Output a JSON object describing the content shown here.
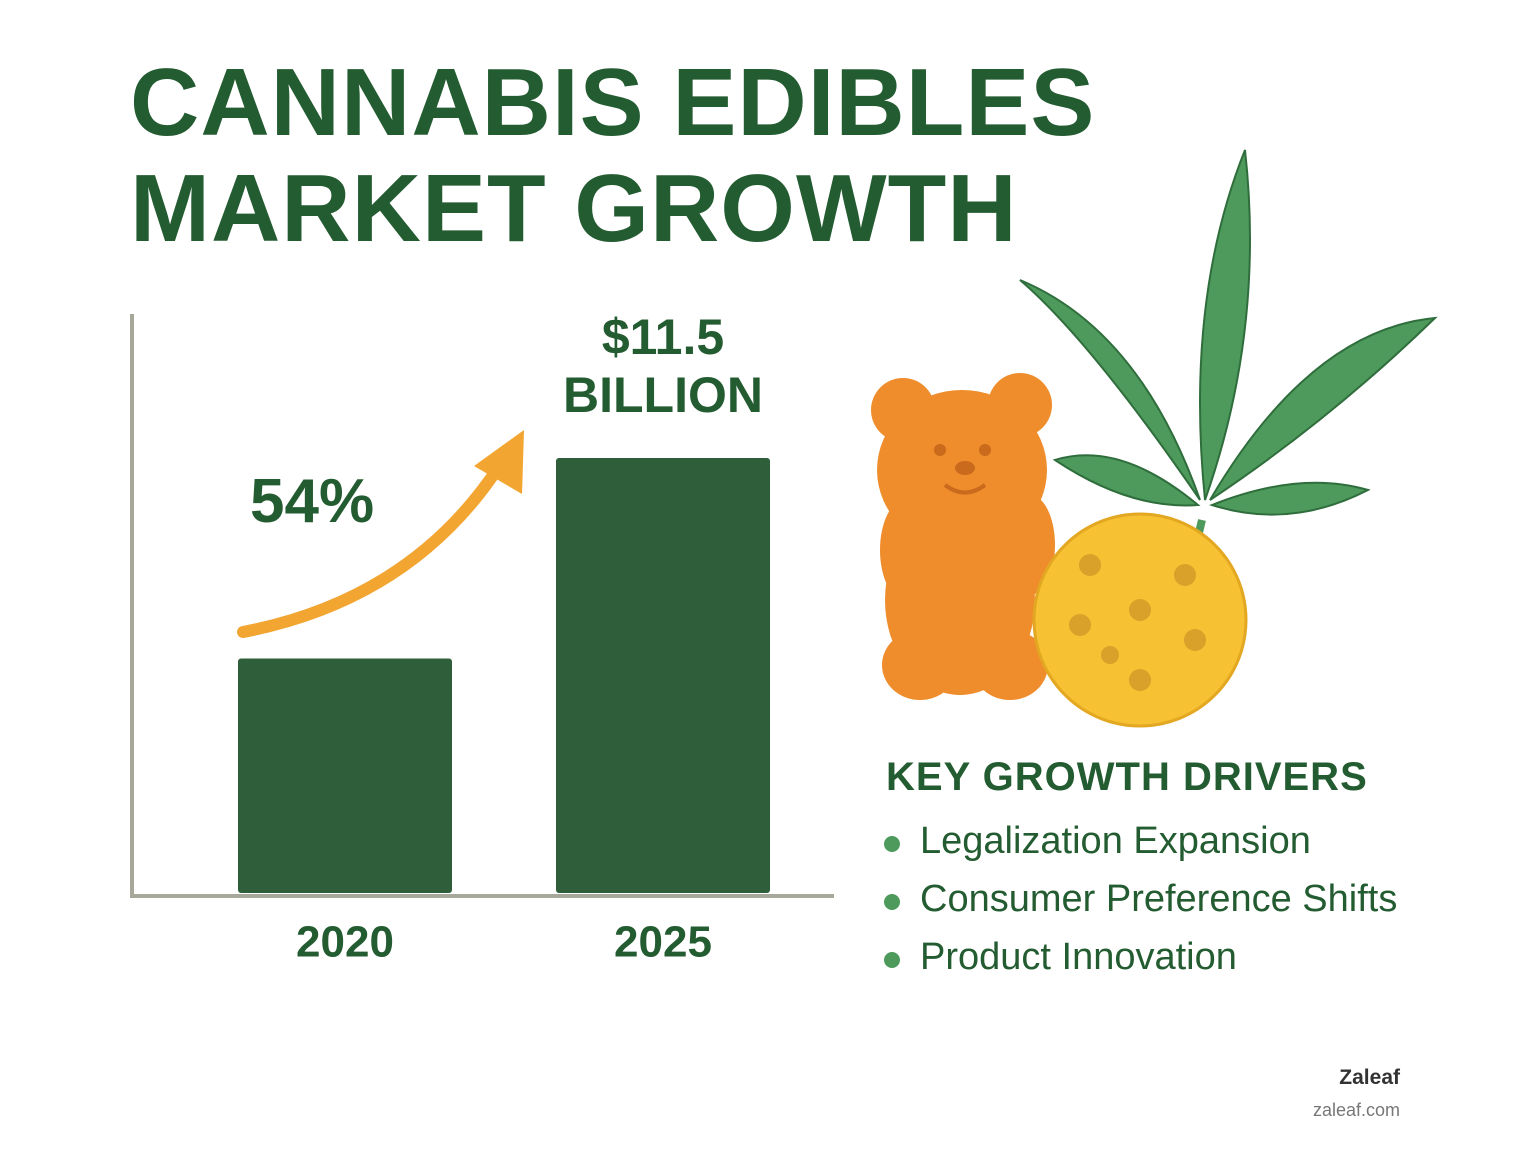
{
  "chart_data": {
    "type": "bar",
    "title": "CANNABIS EDIBLES MARKET GROWTH",
    "categories": [
      "2020",
      "2025"
    ],
    "values": [
      6.2,
      11.5
    ],
    "value_labels": [
      null,
      "$11.5 BILLION"
    ],
    "color": "#2e5e3a",
    "annotation": "54%"
  },
  "drivers": {
    "heading": "KEY GROWTH DRIVERS",
    "items": [
      "Legalization Expansion",
      "Consumer Preference Shifts",
      "Product Innovation"
    ]
  },
  "footer": {
    "brand": "Zaleaf",
    "url": "zaleaf.com"
  }
}
